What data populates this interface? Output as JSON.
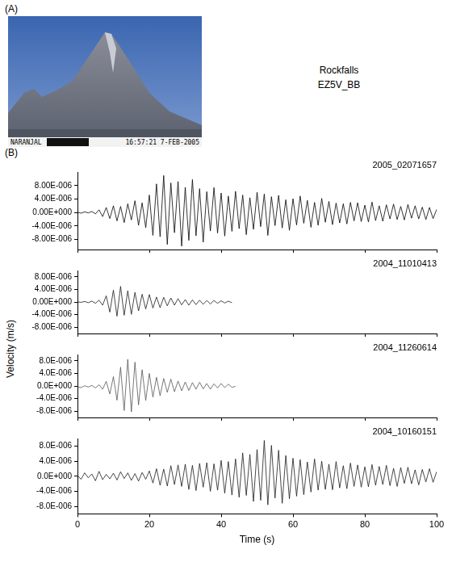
{
  "panel_a": {
    "label": "(A)",
    "photo_caption_left": "NARANJAL",
    "photo_caption_right": "16:57:21  7-FEB-2005",
    "text": [
      "Rockfalls",
      "EZ5V_BB"
    ]
  },
  "panel_b": {
    "label": "(B)",
    "ylabel": "Velocity (m/s)"
  },
  "chart_data": [
    {
      "type": "line",
      "title": "2005_02071657",
      "color": "#000000",
      "grid": false,
      "tick_labels": "y",
      "xlim": [
        0,
        100
      ],
      "xticks": [
        0,
        20,
        40,
        60,
        80,
        100
      ],
      "ylim": [
        -1.1e-05,
        1.2e-05
      ],
      "yticks": [
        {
          "value": -8e-06,
          "label": "-8.00E-006"
        },
        {
          "value": -4e-06,
          "label": "-4.00E-006"
        },
        {
          "value": 0,
          "label": "0.00E+000"
        },
        {
          "value": 4e-06,
          "label": "4.00E-006"
        },
        {
          "value": 8e-06,
          "label": "8.00E-006"
        }
      ],
      "x": [
        0,
        1,
        2,
        3,
        4,
        5,
        6,
        7,
        8,
        9,
        10,
        11,
        12,
        13,
        14,
        15,
        16,
        17,
        18,
        19,
        20,
        21,
        22,
        23,
        24,
        25,
        26,
        27,
        28,
        29,
        30,
        31,
        32,
        33,
        34,
        35,
        36,
        37,
        38,
        39,
        40,
        41,
        42,
        43,
        44,
        45,
        46,
        47,
        48,
        49,
        50,
        51,
        52,
        53,
        54,
        55,
        56,
        57,
        58,
        59,
        60,
        61,
        62,
        63,
        64,
        65,
        66,
        67,
        68,
        69,
        70,
        71,
        72,
        73,
        74,
        75,
        76,
        77,
        78,
        79,
        80,
        81,
        82,
        83,
        84,
        85,
        86,
        87,
        88,
        89,
        90,
        91,
        92,
        93,
        94,
        95,
        96,
        97,
        98,
        99,
        100
      ],
      "values": [
        1e-07,
        -2e-07,
        2e-07,
        -1e-07,
        3e-07,
        -4e-07,
        8e-07,
        -1.2e-06,
        1.5e-06,
        -1.8e-06,
        2e-06,
        -2.5e-06,
        1.8e-06,
        -3e-06,
        2.6e-06,
        -2.2e-06,
        3.5e-06,
        -3.8e-06,
        2.9e-06,
        -4.5e-06,
        5.2e-06,
        -6.8e-06,
        8.5e-06,
        -7.2e-06,
        1.1e-05,
        -9.5e-06,
        8.8e-06,
        -6e-06,
        9.2e-06,
        -1e-05,
        7.5e-06,
        -8.3e-06,
        9.8e-06,
        -6.9e-06,
        7.1e-06,
        -8.8e-06,
        6.2e-06,
        -5.5e-06,
        7.4e-06,
        -6.1e-06,
        5.8e-06,
        -7e-06,
        4.9e-06,
        -5.6e-06,
        6.3e-06,
        -4.8e-06,
        5.2e-06,
        -6.6e-06,
        4.4e-06,
        -5e-06,
        6e-06,
        -4.2e-06,
        5.5e-06,
        -6.8e-06,
        4.7e-06,
        -3.9e-06,
        5.1e-06,
        -4.6e-06,
        3.8e-06,
        -5.3e-06,
        4.1e-06,
        -3.7e-06,
        4.9e-06,
        -3.2e-06,
        3.6e-06,
        -4.4e-06,
        3e-06,
        -3.8e-06,
        4.2e-06,
        -2.9e-06,
        3.3e-06,
        -3.6e-06,
        2.8e-06,
        -3.1e-06,
        2.6e-06,
        -3.4e-06,
        3e-06,
        -2.5e-06,
        2.9e-06,
        -2.7e-06,
        2.2e-06,
        -2.8e-06,
        3.1e-06,
        -2.4e-06,
        2e-06,
        -2.6e-06,
        2.3e-06,
        -1.9e-06,
        2.5e-06,
        -2.1e-06,
        1.8e-06,
        -2.2e-06,
        2.4e-06,
        -1.7e-06,
        2e-06,
        -1.9e-06,
        1.6e-06,
        -2.1e-06,
        1.5e-06,
        -1.8e-06,
        9e-07
      ]
    },
    {
      "type": "line",
      "title": "2004_11010413",
      "color": "#1a1a1a",
      "grid": false,
      "tick_labels": "y",
      "xlim": [
        0,
        100
      ],
      "xticks": [
        0,
        20,
        40,
        60,
        80,
        100
      ],
      "ylim": [
        -1e-05,
        1e-05
      ],
      "yticks": [
        {
          "value": -8e-06,
          "label": "-8.00E-006"
        },
        {
          "value": -4e-06,
          "label": "-4.00E-006"
        },
        {
          "value": 0,
          "label": "0.00E+000"
        },
        {
          "value": 4e-06,
          "label": "4.00E-006"
        },
        {
          "value": 8e-06,
          "label": "8.00E-006"
        }
      ],
      "x": [
        0,
        1,
        2,
        3,
        4,
        5,
        6,
        7,
        8,
        9,
        10,
        11,
        12,
        13,
        14,
        15,
        16,
        17,
        18,
        19,
        20,
        21,
        22,
        23,
        24,
        25,
        26,
        27,
        28,
        29,
        30,
        31,
        32,
        33,
        34,
        35,
        36,
        37,
        38,
        39,
        40,
        41,
        42,
        43
      ],
      "values": [
        1e-07,
        -1e-07,
        2e-07,
        -2e-07,
        3e-07,
        -4e-07,
        6e-07,
        -1e-06,
        2e-06,
        -3.2e-06,
        3.8e-06,
        -4.5e-06,
        5e-06,
        -4.2e-06,
        3.6e-06,
        -3.9e-06,
        3.1e-06,
        -2.8e-06,
        2.5e-06,
        -2.2e-06,
        2.4e-06,
        -1.9e-06,
        1.6e-06,
        -1.8e-06,
        1.5e-06,
        -1.2e-06,
        1.3e-06,
        -1e-06,
        1.1e-06,
        -9e-07,
        8e-07,
        -1e-06,
        7e-07,
        -8e-07,
        6e-07,
        -7e-07,
        5e-07,
        -6e-07,
        5e-07,
        -4e-07,
        4e-07,
        -3e-07,
        3e-07,
        -2e-07
      ]
    },
    {
      "type": "line",
      "title": "2004_11260614",
      "color": "#555555",
      "grid": false,
      "tick_labels": "y",
      "xlim": [
        0,
        100
      ],
      "xticks": [
        0,
        20,
        40,
        60,
        80,
        100
      ],
      "ylim": [
        -1e-05,
        1e-05
      ],
      "yticks": [
        {
          "value": -8e-06,
          "label": "-8.0E-006"
        },
        {
          "value": -4e-06,
          "label": "-4.0E-006"
        },
        {
          "value": 0,
          "label": "0.0E+000"
        },
        {
          "value": 4e-06,
          "label": "4.0E-006"
        },
        {
          "value": 8e-06,
          "label": "8.0E-006"
        }
      ],
      "x": [
        0,
        1,
        2,
        3,
        4,
        5,
        6,
        7,
        8,
        9,
        10,
        11,
        12,
        13,
        14,
        15,
        16,
        17,
        18,
        19,
        20,
        21,
        22,
        23,
        24,
        25,
        26,
        27,
        28,
        29,
        30,
        31,
        32,
        33,
        34,
        35,
        36,
        37,
        38,
        39,
        40,
        41,
        42,
        43,
        44
      ],
      "values": [
        -2e-07,
        -5e-07,
        1e-07,
        -3e-07,
        2e-07,
        -6e-07,
        4e-07,
        -1e-06,
        1.5e-06,
        -2.5e-06,
        3e-06,
        -4.5e-06,
        6e-06,
        -7.8e-06,
        8.5e-06,
        -8.2e-06,
        7.6e-06,
        -6e-06,
        5.2e-06,
        -4.6e-06,
        4e-06,
        -3.5e-06,
        2.8e-06,
        -3.1e-06,
        2.4e-06,
        -2e-06,
        2.2e-06,
        -1.8e-06,
        1.6e-06,
        -1.5e-06,
        1.3e-06,
        -1.4e-06,
        1.1e-06,
        -1e-06,
        1.2e-06,
        -9e-07,
        8e-07,
        -1e-06,
        7e-07,
        -6e-07,
        8e-07,
        -5e-07,
        6e-07,
        -4e-07,
        -1e-07
      ]
    },
    {
      "type": "line",
      "title": "2004_10160151",
      "color": "#1a1a1a",
      "grid": false,
      "xlabel": "Time (s)",
      "xlim": [
        0,
        100
      ],
      "xticks": [
        0,
        20,
        40,
        60,
        80,
        100
      ],
      "ylim": [
        -1e-05,
        1e-05
      ],
      "yticks": [
        {
          "value": -8e-06,
          "label": "-8.0E-006"
        },
        {
          "value": -4e-06,
          "label": "-4.0E-006"
        },
        {
          "value": 0,
          "label": "0.0E+000"
        },
        {
          "value": 4e-06,
          "label": "4.0E-006"
        },
        {
          "value": 8e-06,
          "label": "8.0E-006"
        }
      ],
      "x": [
        0,
        1,
        2,
        3,
        4,
        5,
        6,
        7,
        8,
        9,
        10,
        11,
        12,
        13,
        14,
        15,
        16,
        17,
        18,
        19,
        20,
        21,
        22,
        23,
        24,
        25,
        26,
        27,
        28,
        29,
        30,
        31,
        32,
        33,
        34,
        35,
        36,
        37,
        38,
        39,
        40,
        41,
        42,
        43,
        44,
        45,
        46,
        47,
        48,
        49,
        50,
        51,
        52,
        53,
        54,
        55,
        56,
        57,
        58,
        59,
        60,
        61,
        62,
        63,
        64,
        65,
        66,
        67,
        68,
        69,
        70,
        71,
        72,
        73,
        74,
        75,
        76,
        77,
        78,
        79,
        80,
        81,
        82,
        83,
        84,
        85,
        86,
        87,
        88,
        89,
        90,
        91,
        92,
        93,
        94,
        95,
        96,
        97,
        98,
        99,
        100
      ],
      "values": [
        2e-07,
        -8e-07,
        9e-07,
        -4e-07,
        6e-07,
        -1.2e-06,
        1.3e-06,
        -9e-07,
        5e-07,
        -7e-07,
        8e-07,
        -1e-06,
        1.2e-06,
        -6e-07,
        9e-07,
        -1.1e-06,
        7e-07,
        -1.3e-06,
        1e-06,
        -8e-07,
        1.4e-06,
        -1.8e-06,
        2e-06,
        -2.4e-06,
        1.9e-06,
        -2.6e-06,
        2.8e-06,
        -2.2e-06,
        3e-06,
        -2.7e-06,
        3.2e-06,
        -3.5e-06,
        2.9e-06,
        -3.8e-06,
        3.4e-06,
        -2.9e-06,
        3.6e-06,
        -4e-06,
        3.3e-06,
        -3.7e-06,
        4.2e-06,
        -4.5e-06,
        3.9e-06,
        -5e-06,
        4.6e-06,
        -5.6e-06,
        6.2e-06,
        -5.1e-06,
        5.8e-06,
        -6.7e-06,
        7.1e-06,
        -6.4e-06,
        9.5e-06,
        -7.6e-06,
        8.2e-06,
        -5.8e-06,
        6.9e-06,
        -7.2e-06,
        5.5e-06,
        -6e-06,
        4.8e-06,
        -5.3e-06,
        4.4e-06,
        -4.9e-06,
        3.8e-06,
        -4.2e-06,
        4.6e-06,
        -3.7e-06,
        4e-06,
        -3.5e-06,
        3.2e-06,
        -3.6e-06,
        3.9e-06,
        -3.1e-06,
        2.8e-06,
        -3.3e-06,
        3.5e-06,
        -2.7e-06,
        3e-06,
        -2.9e-06,
        2.5e-06,
        -2.8e-06,
        3.1e-06,
        -2.4e-06,
        2.6e-06,
        -2.2e-06,
        2.9e-06,
        -2.5e-06,
        2.1e-06,
        -2.7e-06,
        2.3e-06,
        -1.9e-06,
        2.4e-06,
        -2e-06,
        1.7e-06,
        -2.3e-06,
        1.8e-06,
        -1.5e-06,
        2e-06,
        -1.6e-06,
        1.2e-06
      ]
    }
  ]
}
